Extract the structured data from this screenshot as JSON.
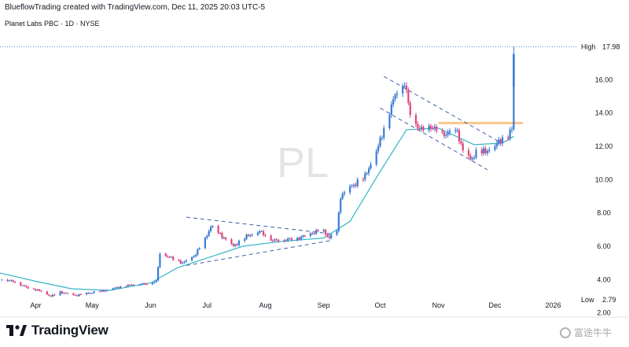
{
  "header": {
    "attribution": "BlueflowTrading created with TradingView.com, Dec 11, 2025 20:03 UTC-5",
    "symbol_info": "Planet Labs PBC · 1D · NYSE"
  },
  "watermark": "PL",
  "branding": {
    "logo_text": "TradingView",
    "corner_watermark": "富途牛牛"
  },
  "colors": {
    "up": "#3a7bd5",
    "down": "#e0457b",
    "ma": "#33b5c8",
    "trend": "#3f5fa8",
    "resistance": "#fbc68a",
    "high_line": "#4b8fd6"
  },
  "chart_data": {
    "type": "candlestick",
    "y_axis": {
      "ticks": [
        2.0,
        4.0,
        6.0,
        8.0,
        10.0,
        12.0,
        14.0,
        16.0
      ],
      "tick_labels": [
        "2.00",
        "4.00",
        "6.00",
        "8.00",
        "10.00",
        "12.00",
        "14.00",
        "16.00"
      ],
      "range": [
        1.75,
        18.9
      ]
    },
    "x_axis": {
      "labels": [
        "Apr",
        "May",
        "Jun",
        "Jul",
        "Aug",
        "Sep",
        "Oct",
        "Nov",
        "Dec",
        "2026"
      ],
      "label_dates": [
        "2025-04-01",
        "2025-05-01",
        "2025-06-01",
        "2025-07-01",
        "2025-08-01",
        "2025-09-01",
        "2025-10-01",
        "2025-11-01",
        "2025-12-01",
        "2026-01-01"
      ],
      "range": [
        "2025-03-13",
        "2026-01-12"
      ]
    },
    "high_marker": {
      "label": "High",
      "value": 17.98,
      "value_label": "17.98"
    },
    "low_marker": {
      "label": "Low",
      "value": 2.79,
      "value_label": "2.79"
    },
    "price_path": [
      [
        "2025-03-14",
        4.0
      ],
      [
        "2025-03-20",
        3.9
      ],
      [
        "2025-03-27",
        3.55
      ],
      [
        "2025-04-04",
        3.3
      ],
      [
        "2025-04-09",
        3.0
      ],
      [
        "2025-04-14",
        3.25
      ],
      [
        "2025-04-22",
        3.05
      ],
      [
        "2025-04-30",
        3.2
      ],
      [
        "2025-05-08",
        3.35
      ],
      [
        "2025-05-15",
        3.55
      ],
      [
        "2025-05-22",
        3.7
      ],
      [
        "2025-05-30",
        3.75
      ],
      [
        "2025-06-04",
        3.9
      ],
      [
        "2025-06-06",
        5.6
      ],
      [
        "2025-06-12",
        5.3
      ],
      [
        "2025-06-18",
        5.0
      ],
      [
        "2025-06-24",
        5.4
      ],
      [
        "2025-06-30",
        6.4
      ],
      [
        "2025-07-03",
        7.2
      ],
      [
        "2025-07-08",
        6.7
      ],
      [
        "2025-07-15",
        6.0
      ],
      [
        "2025-07-22",
        6.6
      ],
      [
        "2025-07-29",
        6.9
      ],
      [
        "2025-08-05",
        6.35
      ],
      [
        "2025-08-12",
        6.4
      ],
      [
        "2025-08-19",
        6.5
      ],
      [
        "2025-08-26",
        6.8
      ],
      [
        "2025-08-31",
        7.0
      ],
      [
        "2025-09-04",
        6.5
      ],
      [
        "2025-09-08",
        6.9
      ],
      [
        "2025-09-10",
        9.0
      ],
      [
        "2025-09-16",
        9.6
      ],
      [
        "2025-09-23",
        10.2
      ],
      [
        "2025-09-30",
        12.0
      ],
      [
        "2025-10-05",
        13.8
      ],
      [
        "2025-10-10",
        15.4
      ],
      [
        "2025-10-14",
        15.8
      ],
      [
        "2025-10-17",
        14.0
      ],
      [
        "2025-10-22",
        13.0
      ],
      [
        "2025-10-28",
        13.2
      ],
      [
        "2025-11-03",
        12.7
      ],
      [
        "2025-11-07",
        12.8
      ],
      [
        "2025-11-11",
        12.9
      ],
      [
        "2025-11-14",
        11.7
      ],
      [
        "2025-11-18",
        11.2
      ],
      [
        "2025-11-21",
        11.6
      ],
      [
        "2025-11-26",
        11.7
      ],
      [
        "2025-12-01",
        12.0
      ],
      [
        "2025-12-04",
        12.4
      ],
      [
        "2025-12-08",
        12.7
      ],
      [
        "2025-12-10",
        13.0
      ],
      [
        "2025-12-11",
        15.6
      ]
    ],
    "moving_average": [
      [
        "2025-03-13",
        4.4
      ],
      [
        "2025-04-01",
        3.9
      ],
      [
        "2025-04-20",
        3.45
      ],
      [
        "2025-05-10",
        3.35
      ],
      [
        "2025-06-01",
        3.8
      ],
      [
        "2025-06-15",
        4.7
      ],
      [
        "2025-07-01",
        5.3
      ],
      [
        "2025-07-20",
        6.0
      ],
      [
        "2025-08-10",
        6.3
      ],
      [
        "2025-09-01",
        6.5
      ],
      [
        "2025-09-15",
        7.5
      ],
      [
        "2025-10-01",
        10.5
      ],
      [
        "2025-10-15",
        13.0
      ],
      [
        "2025-11-01",
        13.1
      ],
      [
        "2025-11-20",
        12.1
      ],
      [
        "2025-12-05",
        12.2
      ],
      [
        "2025-12-11",
        12.6
      ]
    ],
    "trend_lines": [
      {
        "from": [
          "2025-06-20",
          7.75
        ],
        "to": [
          "2025-09-05",
          6.75
        ]
      },
      {
        "from": [
          "2025-06-20",
          4.85
        ],
        "to": [
          "2025-09-05",
          6.35
        ]
      },
      {
        "from": [
          "2025-10-03",
          16.2
        ],
        "to": [
          "2025-12-03",
          12.3
        ]
      },
      {
        "from": [
          "2025-10-01",
          14.3
        ],
        "to": [
          "2025-11-27",
          10.6
        ]
      }
    ],
    "resistance_zone": {
      "from": "2025-11-01",
      "to": "2025-12-16",
      "value": 13.4
    }
  }
}
